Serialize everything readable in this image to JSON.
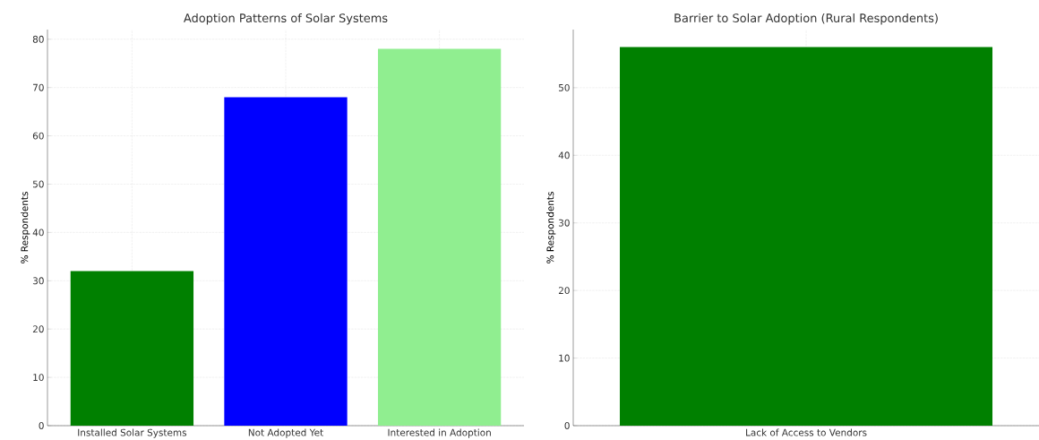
{
  "chart_data": [
    {
      "type": "bar",
      "title": "Adoption Patterns of Solar Systems",
      "ylabel": "% Respondents",
      "categories": [
        "Installed Solar Systems",
        "Not Adopted Yet",
        "Interested in Adoption"
      ],
      "values": [
        32,
        68,
        78
      ],
      "colors": [
        "#008000",
        "#0000ff",
        "#90ee90"
      ],
      "ylim": [
        0,
        82
      ],
      "yticks": [
        0,
        10,
        20,
        30,
        40,
        50,
        60,
        70,
        80
      ],
      "grid": true
    },
    {
      "type": "bar",
      "title": "Barrier to Solar Adoption (Rural Respondents)",
      "ylabel": "% Respondents",
      "categories": [
        "Lack of Access to Vendors"
      ],
      "values": [
        56
      ],
      "colors": [
        "#008000"
      ],
      "ylim": [
        0,
        58.6
      ],
      "yticks": [
        0,
        10,
        20,
        30,
        40,
        50
      ],
      "grid": true
    }
  ]
}
